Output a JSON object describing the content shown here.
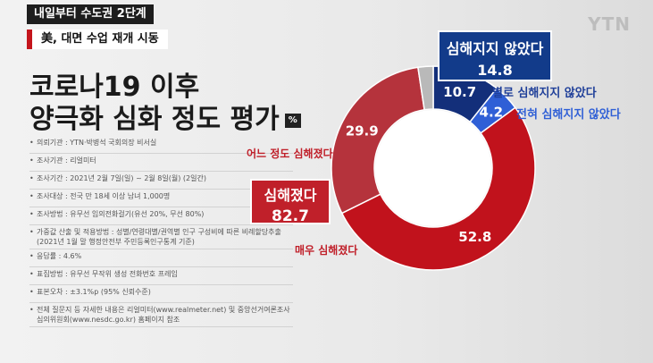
{
  "ticker": {
    "line1": "내일부터 수도권 2단계",
    "line2": "美, 대면 수업 재개 시동"
  },
  "brand": "YTN",
  "title": {
    "line1": "코로나19 이후",
    "line2": "양극화 심화 정도 평가",
    "unit": "%"
  },
  "survey_info": [
    "의뢰기관 : YTN·박병석 국회의장 비서실",
    "조사기관 : 리얼미터",
    "조사기간 : 2021년 2월 7일(일) ~ 2월 8일(월) (2일간)",
    "조사대상 : 전국 만 18세 이상 남녀 1,000명",
    "조사방법 : 유무선 임의전화걸기(유선 20%, 무선 80%)",
    "가중값 산출 및 적용방법 : 성별/연령대별/권역별 인구 구성비에 따른 비례할당추출(2021년 1월 말 행정안전부 주민등록인구통계 기준)",
    "응답률 : 4.6%",
    "표집방법 : 유무선 무작위 생성 전화번호 프레임",
    "표본오차 : ±3.1%p (95% 신뢰수준)",
    "전체 질문지 등 자세한 내용은 리얼미터(www.realmeter.net) 및 중앙선거여론조사심의위원회(www.nesdc.go.kr) 홈페이지 참조"
  ],
  "chart_data": {
    "type": "pie",
    "donut": true,
    "title": "코로나19 이후 양극화 심화 정도 평가",
    "unit": "%",
    "slices": [
      {
        "label": "별로 심해지지 않았다",
        "value": 10.7,
        "color": "#132f7a"
      },
      {
        "label": "전혀 심해지지 않았다",
        "value": 4.2,
        "color": "#2f5fd6"
      },
      {
        "label": "매우 심해졌다",
        "value": 52.8,
        "color": "#c1121c"
      },
      {
        "label": "어느 정도 심해졌다",
        "value": 29.9,
        "color": "#b5333c"
      },
      {
        "label": "",
        "value": 2.4,
        "color": "#b9b9b9"
      }
    ],
    "groups": [
      {
        "label": "심해지지 않았다",
        "value": 14.8,
        "color": "#123b8a"
      },
      {
        "label": "심해졌다",
        "value": 82.7,
        "color": "#c0202a"
      }
    ],
    "label_colors": {
      "not_worse": "#1f3f99",
      "worse": "#c0202a"
    }
  }
}
